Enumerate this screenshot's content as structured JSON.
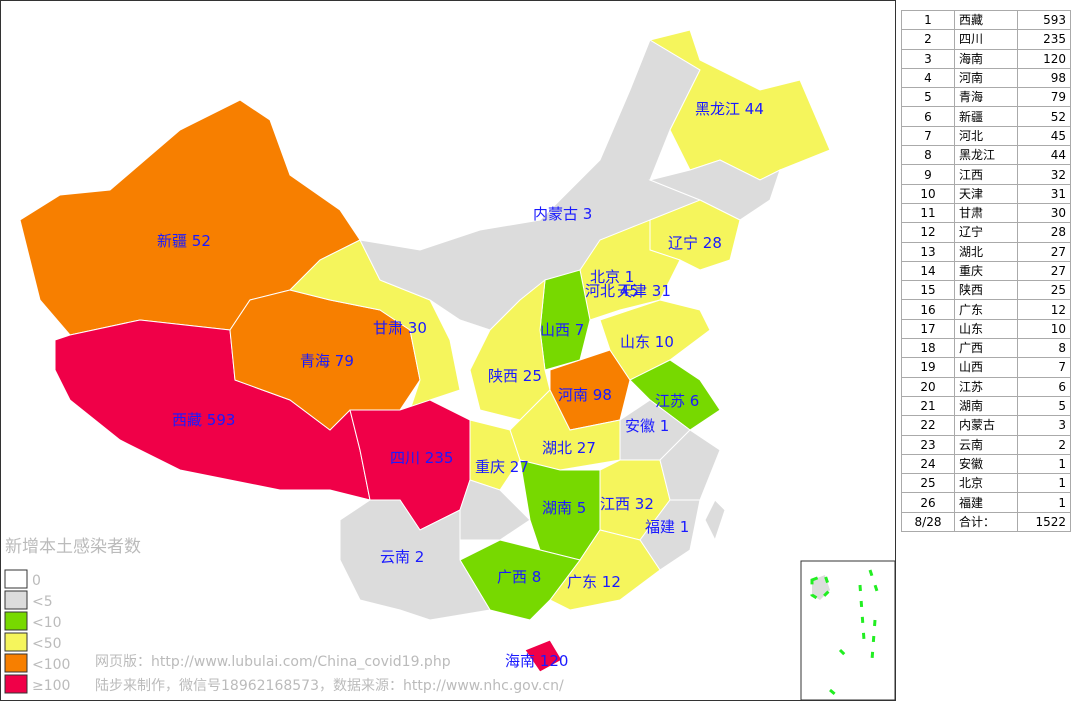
{
  "map": {
    "title": "新增本土感染者数",
    "legend": [
      {
        "label": "0",
        "color": "#ffffff"
      },
      {
        "label": "<5",
        "color": "#dcdcdc"
      },
      {
        "label": "<10",
        "color": "#77d900"
      },
      {
        "label": "<50",
        "color": "#f5f55c"
      },
      {
        "label": "<100",
        "color": "#f77f00"
      },
      {
        "label": "≥100",
        "color": "#f00048"
      }
    ],
    "credits": [
      "网页版：http://www.lubulai.com/China_covid19.php",
      "陆步来制作，微信号18962168573，数据来源：http://www.nhc.gov.cn/"
    ]
  },
  "table": {
    "rows": [
      [
        1,
        "西藏",
        593
      ],
      [
        2,
        "四川",
        235
      ],
      [
        3,
        "海南",
        120
      ],
      [
        4,
        "河南",
        98
      ],
      [
        5,
        "青海",
        79
      ],
      [
        6,
        "新疆",
        52
      ],
      [
        7,
        "河北",
        45
      ],
      [
        8,
        "黑龙江",
        44
      ],
      [
        9,
        "江西",
        32
      ],
      [
        10,
        "天津",
        31
      ],
      [
        11,
        "甘肃",
        30
      ],
      [
        12,
        "辽宁",
        28
      ],
      [
        13,
        "湖北",
        27
      ],
      [
        14,
        "重庆",
        27
      ],
      [
        15,
        "陕西",
        25
      ],
      [
        16,
        "广东",
        12
      ],
      [
        17,
        "山东",
        10
      ],
      [
        18,
        "广西",
        8
      ],
      [
        19,
        "山西",
        7
      ],
      [
        20,
        "江苏",
        6
      ],
      [
        21,
        "湖南",
        5
      ],
      [
        22,
        "内蒙古",
        3
      ],
      [
        23,
        "云南",
        2
      ],
      [
        24,
        "安徽",
        1
      ],
      [
        25,
        "北京",
        1
      ],
      [
        26,
        "福建",
        1
      ]
    ],
    "total": [
      "8/28",
      "合计：",
      1522
    ]
  }
}
